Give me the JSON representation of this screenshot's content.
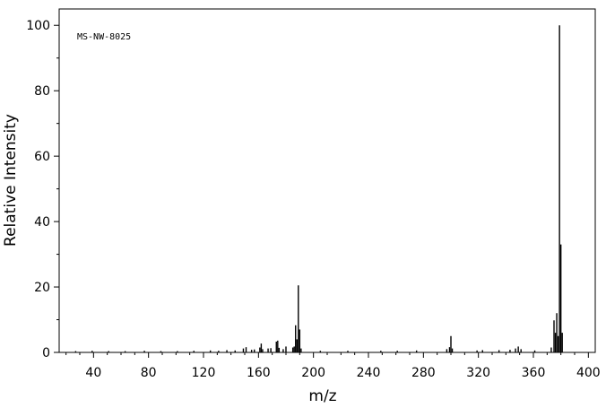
{
  "chart_data": {
    "type": "bar",
    "title": "",
    "annotation": "MS-NW-8025",
    "xlabel": "m/z",
    "ylabel": "Relative Intensity",
    "xlim": [
      15,
      405
    ],
    "ylim": [
      0,
      105
    ],
    "x_ticks": [
      40,
      80,
      120,
      160,
      200,
      240,
      280,
      320,
      360,
      400
    ],
    "y_ticks": [
      0,
      20,
      40,
      60,
      80,
      100
    ],
    "x_minor_step": 10,
    "y_minor_step": 10,
    "grid": false,
    "peaks": [
      {
        "mz": 27,
        "intensity": 0.4
      },
      {
        "mz": 39,
        "intensity": 0.5
      },
      {
        "mz": 51,
        "intensity": 0.4
      },
      {
        "mz": 63,
        "intensity": 0.4
      },
      {
        "mz": 77,
        "intensity": 0.5
      },
      {
        "mz": 89,
        "intensity": 0.4
      },
      {
        "mz": 101,
        "intensity": 0.4
      },
      {
        "mz": 113,
        "intensity": 0.5
      },
      {
        "mz": 125,
        "intensity": 0.6
      },
      {
        "mz": 131,
        "intensity": 0.5
      },
      {
        "mz": 137,
        "intensity": 0.7
      },
      {
        "mz": 143,
        "intensity": 0.6
      },
      {
        "mz": 149,
        "intensity": 1.2
      },
      {
        "mz": 151,
        "intensity": 1.6
      },
      {
        "mz": 155,
        "intensity": 0.8
      },
      {
        "mz": 157,
        "intensity": 0.9
      },
      {
        "mz": 161,
        "intensity": 1.5
      },
      {
        "mz": 162,
        "intensity": 2.7
      },
      {
        "mz": 163,
        "intensity": 1.0
      },
      {
        "mz": 167,
        "intensity": 1.2
      },
      {
        "mz": 169,
        "intensity": 1.3
      },
      {
        "mz": 173,
        "intensity": 3.3
      },
      {
        "mz": 174,
        "intensity": 3.6
      },
      {
        "mz": 175,
        "intensity": 1.4
      },
      {
        "mz": 178,
        "intensity": 1.0
      },
      {
        "mz": 180,
        "intensity": 1.8
      },
      {
        "mz": 185,
        "intensity": 1.5
      },
      {
        "mz": 186,
        "intensity": 1.8
      },
      {
        "mz": 187,
        "intensity": 8.3
      },
      {
        "mz": 188,
        "intensity": 4.0
      },
      {
        "mz": 189,
        "intensity": 20.5
      },
      {
        "mz": 190,
        "intensity": 7.0
      },
      {
        "mz": 191,
        "intensity": 1.2
      },
      {
        "mz": 205,
        "intensity": 0.5
      },
      {
        "mz": 225,
        "intensity": 0.5
      },
      {
        "mz": 249,
        "intensity": 0.5
      },
      {
        "mz": 261,
        "intensity": 0.5
      },
      {
        "mz": 275,
        "intensity": 0.6
      },
      {
        "mz": 297,
        "intensity": 1.0
      },
      {
        "mz": 299,
        "intensity": 1.6
      },
      {
        "mz": 300,
        "intensity": 5.0
      },
      {
        "mz": 301,
        "intensity": 1.2
      },
      {
        "mz": 319,
        "intensity": 0.6
      },
      {
        "mz": 323,
        "intensity": 0.7
      },
      {
        "mz": 335,
        "intensity": 0.7
      },
      {
        "mz": 343,
        "intensity": 0.8
      },
      {
        "mz": 347,
        "intensity": 1.2
      },
      {
        "mz": 349,
        "intensity": 1.8
      },
      {
        "mz": 351,
        "intensity": 1.0
      },
      {
        "mz": 361,
        "intensity": 0.6
      },
      {
        "mz": 373,
        "intensity": 1.5
      },
      {
        "mz": 375,
        "intensity": 9.8
      },
      {
        "mz": 376,
        "intensity": 6.0
      },
      {
        "mz": 377,
        "intensity": 12.0
      },
      {
        "mz": 378,
        "intensity": 5.0
      },
      {
        "mz": 379,
        "intensity": 100.0
      },
      {
        "mz": 380,
        "intensity": 33.0
      },
      {
        "mz": 381,
        "intensity": 6.0
      }
    ]
  }
}
